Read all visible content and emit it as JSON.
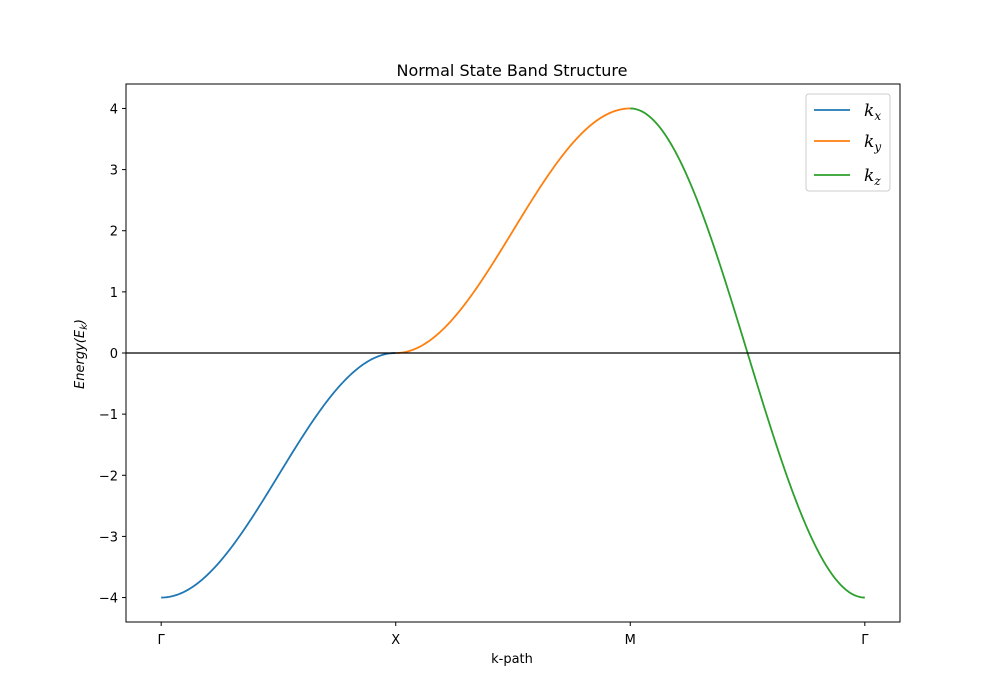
{
  "chart_data": {
    "type": "line",
    "title": "Normal State Band Structure",
    "xlabel": "k-path",
    "ylabel": {
      "base": "Energy(E",
      "sub": "k",
      "close": ")"
    },
    "x_ticks": [
      "Γ",
      "X",
      "M",
      "Γ"
    ],
    "x_tick_positions": [
      0,
      1,
      2,
      3
    ],
    "xlim": [
      -0.15,
      3.15
    ],
    "ylim": [
      -4.4,
      4.4
    ],
    "y_ticks": [
      4,
      3,
      2,
      1,
      0,
      -1,
      -2,
      -3,
      -4
    ],
    "y_tick_labels": [
      "4",
      "3",
      "2",
      "1",
      "0",
      "−1",
      "−2",
      "−3",
      "−4"
    ],
    "grid": false,
    "legend_placement": "top-right",
    "series": [
      {
        "name": "k",
        "name_sub": "x",
        "color": "#1f77b4",
        "x_start": 0,
        "x_end": 1,
        "y_start": -4,
        "y_end": 0
      },
      {
        "name": "k",
        "name_sub": "y",
        "color": "#ff7f0e",
        "x_start": 1,
        "x_end": 2,
        "y_start": 0,
        "y_end": 4
      },
      {
        "name": "k",
        "name_sub": "z",
        "color": "#2ca02c",
        "x_start": 2,
        "x_end": 3,
        "y_start": 4,
        "y_end": -4
      }
    ],
    "reference_line": {
      "y": 0,
      "color": "#000000"
    }
  }
}
